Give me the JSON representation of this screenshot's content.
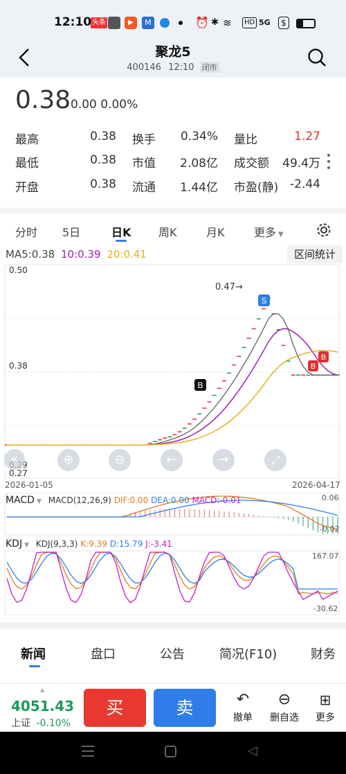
{
  "status": {
    "time": "12:10",
    "icons": [
      "toutiao-icon",
      "game-icon",
      "video-icon",
      "mail-icon",
      "app-icon",
      "dot",
      "alarm-icon",
      "bluetooth-icon",
      "wifi-icon",
      "hd-icon",
      "5g-icon",
      "dollar-icon",
      "battery-icon"
    ],
    "badge": "头条",
    "hd": "HD",
    "net": "5G"
  },
  "header": {
    "name": "聚龙5",
    "code": "400146",
    "time": "12:10",
    "state": "闭市"
  },
  "quote": {
    "price": "0.38",
    "change": "0.00 0.00%",
    "rows": [
      {
        "l1": "最高",
        "v1": "0.38",
        "l2": "换手",
        "v2": "0.34%",
        "l3": "量比",
        "v3": "1.27"
      },
      {
        "l1": "最低",
        "v1": "0.38",
        "l2": "市值",
        "v2": "2.08亿",
        "l3": "成交额",
        "v3": "49.4万"
      },
      {
        "l1": "开盘",
        "v1": "0.38",
        "l2": "流通",
        "v2": "1.44亿",
        "l3": "市盈(静)",
        "v3": "-2.44"
      }
    ]
  },
  "tabs": {
    "t1": "分时",
    "t2": "5日",
    "t3": "日K",
    "t4": "周K",
    "t5": "月K",
    "t6": "更多"
  },
  "chart": {
    "ma5": "MA5:0.38",
    "ma10": "10:0.39",
    "ma20": "20:0.41",
    "range_btn": "区间统计",
    "y_top": "0.50",
    "y_mid": "0.38",
    "y_low": "0.29",
    "y_bottom": "0.27",
    "peak_label": "0.47→",
    "s_marker": "S",
    "b_marker": "B",
    "date_start": "2026-01-05",
    "date_end": "2026-04-17",
    "macd_title": "MACD",
    "macd_params": "MACD(12,26,9)",
    "macd_dif": "DIF:0.00",
    "macd_dea": "DEA:0.00",
    "macd_val": "MACD:-0.01",
    "macd_max": "0.06",
    "macd_min": "-0.02",
    "kdj_title": "KDJ",
    "kdj_params": "KDJ(9,3,3)",
    "kdj_k": "K:9.39",
    "kdj_d": "D:15.79",
    "kdj_j": "J:-3.41",
    "kdj_max": "167.07",
    "kdj_min": "-30.62"
  },
  "chart_data": {
    "type": "line",
    "x_range": [
      "2026-01-05",
      "2026-04-17"
    ],
    "ylim": [
      0.27,
      0.5
    ],
    "series": [
      {
        "name": "MA5",
        "color": "#555555",
        "last": 0.38
      },
      {
        "name": "10",
        "color": "#9b1fb0",
        "last": 0.39
      },
      {
        "name": "20",
        "color": "#e0b020",
        "last": 0.41
      }
    ],
    "y_ticks": [
      0.5,
      0.38,
      0.29,
      0.27
    ],
    "annotations": [
      "0.47→",
      "S",
      "B"
    ]
  },
  "bottom_tabs": {
    "b1": "新闻",
    "b2": "盘口",
    "b3": "公告",
    "b4": "简况(F10)",
    "b5": "财务"
  },
  "action": {
    "index_val": "4051.43",
    "index_name": "上证",
    "index_chg": "-0.10%",
    "buy": "买",
    "sell": "卖",
    "cancel": "撤单",
    "delfav": "删自选",
    "more": "更多"
  },
  "colors": {
    "up": "#e03030",
    "down": "#1a9a5a",
    "buy": "#e8382f",
    "sell": "#2f7de8",
    "accent": "#3a7bd5"
  }
}
